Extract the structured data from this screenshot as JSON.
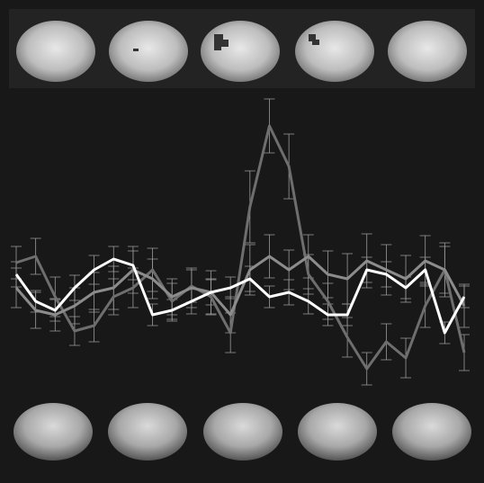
{
  "chart_data": {
    "type": "line",
    "x": [
      0,
      1,
      2,
      3,
      4,
      5,
      6,
      7,
      8,
      9,
      10,
      11,
      12,
      13,
      14,
      15,
      16,
      17,
      18,
      19,
      20,
      21,
      22,
      23
    ],
    "xlim": [
      0,
      23
    ],
    "ylim": [
      0,
      537
    ],
    "series": [
      {
        "color": "#6e6e6e",
        "values": [
          245,
          252,
          207,
          169,
          175,
          207,
          217,
          237,
          202,
          219,
          207,
          167,
          307,
          397,
          352,
          232,
          202,
          162,
          127,
          157,
          139,
          197,
          237,
          145
        ],
        "errors": [
          18,
          20,
          22,
          16,
          18,
          20,
          22,
          24,
          20,
          18,
          20,
          22,
          40,
          30,
          36,
          22,
          20,
          22,
          18,
          20,
          22,
          24,
          26,
          20
        ]
      },
      {
        "color": "#8c8c8c",
        "values": [
          217,
          192,
          187,
          197,
          212,
          217,
          237,
          227,
          207,
          217,
          212,
          187,
          237,
          252,
          237,
          252,
          232,
          227,
          247,
          237,
          227,
          247,
          237,
          197
        ],
        "errors": [
          22,
          20,
          18,
          20,
          22,
          24,
          26,
          22,
          20,
          22,
          24,
          20,
          28,
          24,
          22,
          24,
          26,
          28,
          30,
          28,
          26,
          28,
          30,
          24
        ]
      },
      {
        "color": "#ffffff",
        "values": [
          232,
          202,
          192,
          217,
          237,
          249,
          242,
          187,
          192,
          202,
          212,
          217,
          227,
          207,
          212,
          202,
          187,
          187,
          237,
          232,
          217,
          237,
          167,
          207
        ],
        "errors": [
          14,
          12,
          12,
          14,
          16,
          14,
          16,
          12,
          12,
          14,
          14,
          12,
          14,
          12,
          14,
          14,
          12,
          12,
          14,
          14,
          12,
          14,
          12,
          12
        ]
      }
    ]
  }
}
